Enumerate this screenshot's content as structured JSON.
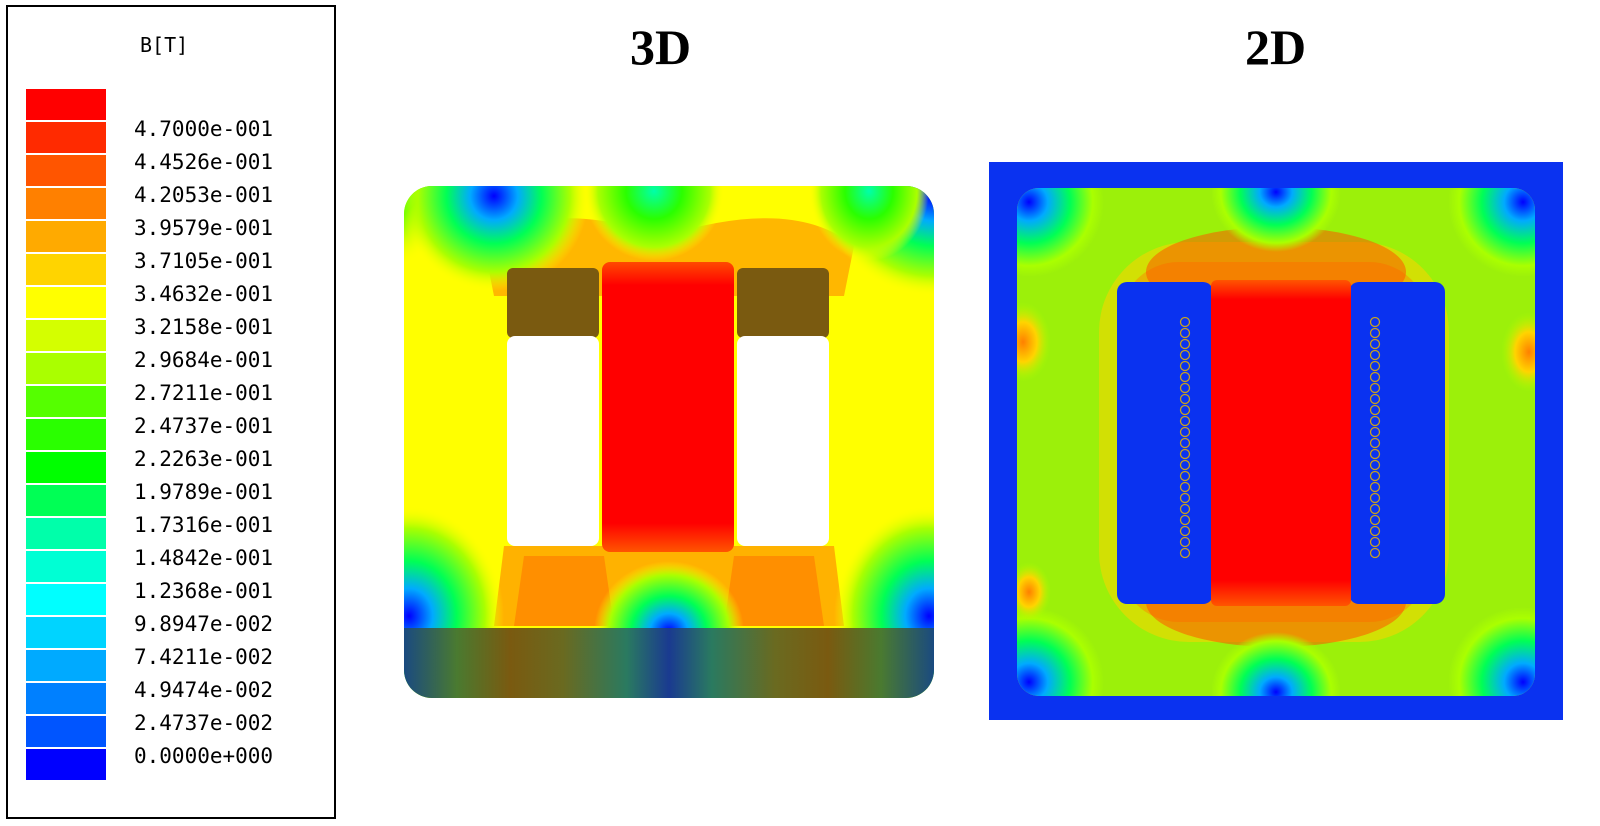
{
  "legend": {
    "title": "B[T]",
    "labels": [
      "4.7000e-001",
      "4.4526e-001",
      "4.2053e-001",
      "3.9579e-001",
      "3.7105e-001",
      "3.4632e-001",
      "3.2158e-001",
      "2.9684e-001",
      "2.7211e-001",
      "2.4737e-001",
      "2.2263e-001",
      "1.9789e-001",
      "1.7316e-001",
      "1.4842e-001",
      "1.2368e-001",
      "9.8947e-002",
      "7.4211e-002",
      "4.9474e-002",
      "2.4737e-002",
      "0.0000e+000"
    ],
    "colors": [
      "#ff0000",
      "#ff2a00",
      "#ff5500",
      "#ff8000",
      "#ffaa00",
      "#ffd400",
      "#ffff00",
      "#d4ff00",
      "#aaff00",
      "#55ff00",
      "#2aff00",
      "#00ff00",
      "#00ff55",
      "#00ffaa",
      "#00ffd4",
      "#00ffff",
      "#00d4ff",
      "#00aaff",
      "#0080ff",
      "#0055ff",
      "#0000ff"
    ]
  },
  "panels": {
    "left_title": "3D",
    "right_title": "2D"
  }
}
